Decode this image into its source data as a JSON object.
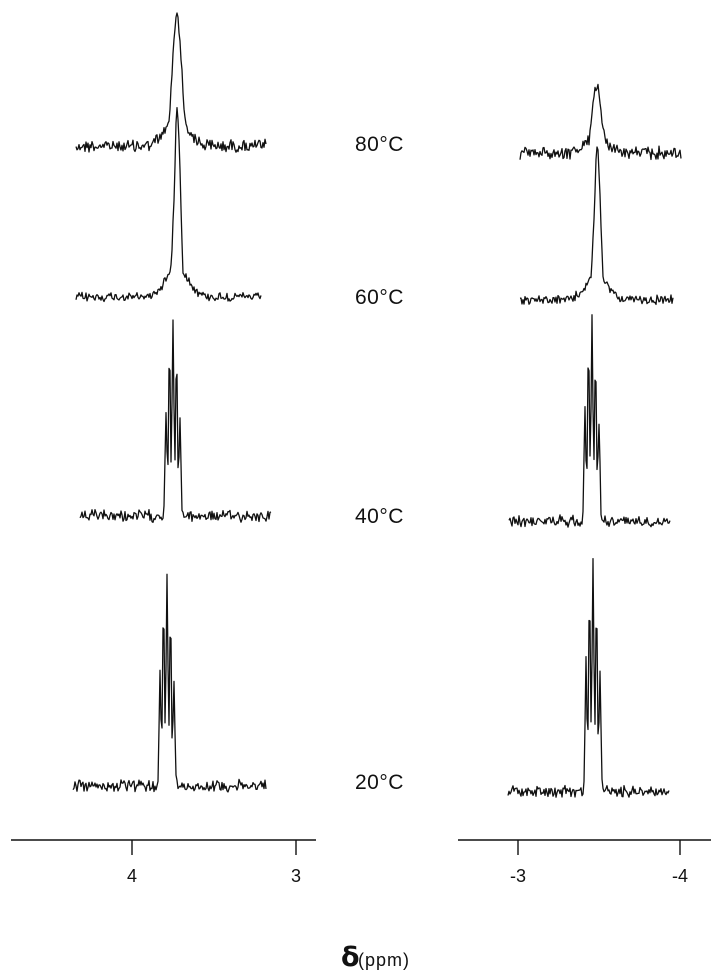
{
  "chart_data": [
    {
      "type": "line",
      "panel": "left",
      "xlim": [
        4.6,
        2.9
      ],
      "x_ticks": [
        "4",
        "3"
      ],
      "x_tick_values": [
        4,
        3
      ],
      "series": [
        {
          "name": "80°C",
          "peak_ppm": 3.8,
          "peak_type": "broad singlet"
        },
        {
          "name": "60°C",
          "peak_ppm": 3.8,
          "peak_type": "partially resolved multiplet"
        },
        {
          "name": "40°C",
          "peak_ppm": 3.8,
          "peak_type": "resolved multiplet"
        },
        {
          "name": "20°C",
          "peak_ppm": 3.8,
          "peak_type": "resolved multiplet"
        }
      ]
    },
    {
      "type": "line",
      "panel": "right",
      "xlim": [
        -2.65,
        -4.1
      ],
      "x_ticks": [
        "-3",
        "-4"
      ],
      "x_tick_values": [
        -3,
        -4
      ],
      "series": [
        {
          "name": "80°C",
          "peak_ppm": -3.45,
          "peak_type": "broad singlet"
        },
        {
          "name": "60°C",
          "peak_ppm": -3.45,
          "peak_type": "partially resolved multiplet"
        },
        {
          "name": "40°C",
          "peak_ppm": -3.45,
          "peak_type": "resolved multiplet"
        },
        {
          "name": "20°C",
          "peak_ppm": -3.45,
          "peak_type": "resolved multiplet"
        }
      ]
    }
  ],
  "temperatures": [
    "80°C",
    "60°C",
    "40°C",
    "20°C"
  ],
  "xlabel": {
    "symbol": "δ",
    "unit": "(ppm)"
  },
  "colors": {
    "ink": "#111111",
    "background": "#ffffff"
  }
}
